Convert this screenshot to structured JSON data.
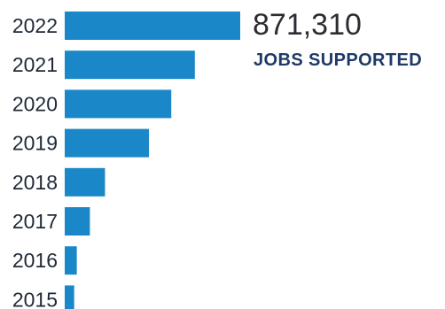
{
  "chart_data": {
    "type": "bar",
    "orientation": "horizontal",
    "categories": [
      "2022",
      "2021",
      "2020",
      "2019",
      "2018",
      "2017",
      "2016",
      "2015"
    ],
    "values": [
      871310,
      646000,
      529000,
      418000,
      200000,
      125000,
      60000,
      47000
    ],
    "xlim": [
      0,
      871310
    ],
    "grid": false,
    "legend": "none",
    "colors": {
      "bar": "#1a87c8",
      "caption": "#1e3a66",
      "text": "#2b2d33"
    }
  },
  "annotation": {
    "value": "871,310",
    "caption": "JOBS SUPPORTED"
  }
}
